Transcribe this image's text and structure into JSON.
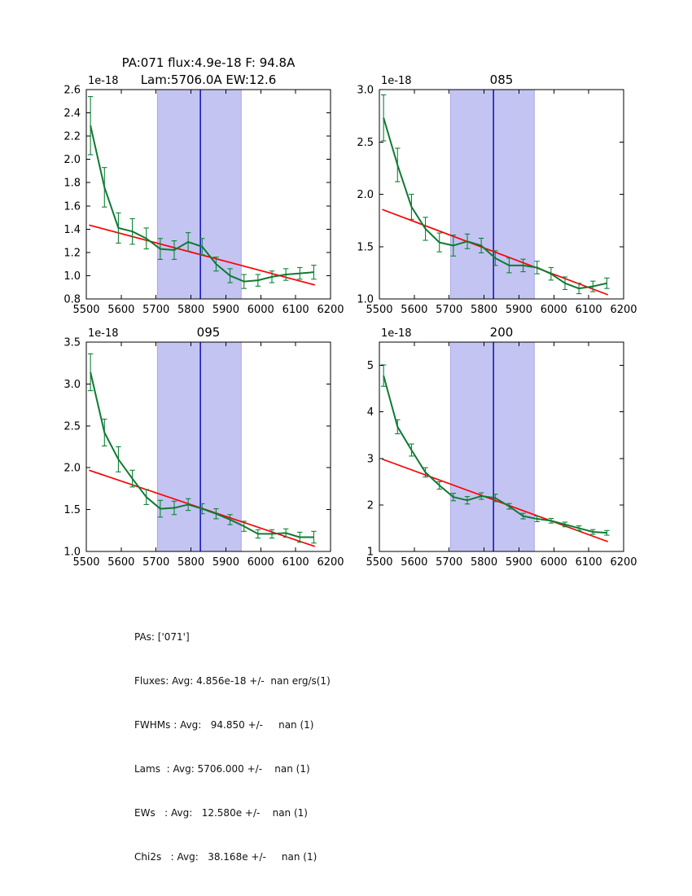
{
  "figure": {
    "background": "#ffffff",
    "colors": {
      "series": "#0f7a33",
      "error_bar": "#0c8434",
      "fit_line": "#ff0000",
      "center_line": "#0000bb",
      "band_fill": "#c4c4f3",
      "band_edge": "#a8a8e8",
      "axis": "#000000",
      "text": "#000000"
    }
  },
  "chart_data": [
    {
      "type": "line",
      "title_lines": [
        "PA:071 flux:4.9e-18 F: 94.8A",
        "Lam:5706.0A EW:12.6"
      ],
      "offset_text": "1e-18",
      "xlim": [
        5500,
        6200
      ],
      "ylim": [
        0.8,
        2.6
      ],
      "xticks": [
        5500,
        5600,
        5700,
        5800,
        5900,
        6000,
        6100,
        6200
      ],
      "xtick_labels": [
        "5500",
        "5600",
        "5700",
        "5800",
        "5900",
        "6000",
        "6100",
        "6200"
      ],
      "yticks": [
        0.8,
        1.0,
        1.2,
        1.4,
        1.6,
        1.8,
        2.0,
        2.2,
        2.4,
        2.6
      ],
      "ytick_labels": [
        "0.8",
        "1.0",
        "1.2",
        "1.4",
        "1.6",
        "1.8",
        "2.0",
        "2.2",
        "2.4",
        "2.6"
      ],
      "band": [
        5704,
        5944
      ],
      "vline": 5827,
      "fit": {
        "x": [
          5508,
          6155
        ],
        "y": [
          1.435,
          0.92
        ]
      },
      "x": [
        5512,
        5552,
        5592,
        5632,
        5672,
        5712,
        5752,
        5792,
        5832,
        5872,
        5912,
        5952,
        5992,
        6032,
        6072,
        6112,
        6152
      ],
      "y": [
        2.29,
        1.76,
        1.41,
        1.38,
        1.32,
        1.23,
        1.22,
        1.29,
        1.25,
        1.1,
        1.0,
        0.95,
        0.96,
        0.99,
        1.01,
        1.02,
        1.03
      ],
      "yerr": [
        0.25,
        0.17,
        0.13,
        0.11,
        0.09,
        0.09,
        0.08,
        0.08,
        0.07,
        0.06,
        0.06,
        0.06,
        0.05,
        0.05,
        0.05,
        0.05,
        0.06
      ]
    },
    {
      "type": "line",
      "title_lines": [
        "085"
      ],
      "offset_text": "1e-18",
      "xlim": [
        5500,
        6200
      ],
      "ylim": [
        1.0,
        3.0
      ],
      "xticks": [
        5500,
        5600,
        5700,
        5800,
        5900,
        6000,
        6100,
        6200
      ],
      "xtick_labels": [
        "5500",
        "5600",
        "5700",
        "5800",
        "5900",
        "6000",
        "6100",
        "6200"
      ],
      "yticks": [
        1.0,
        1.5,
        2.0,
        2.5,
        3.0
      ],
      "ytick_labels": [
        "1.0",
        "1.5",
        "2.0",
        "2.5",
        "3.0"
      ],
      "band": [
        5704,
        5944
      ],
      "vline": 5827,
      "fit": {
        "x": [
          5508,
          6155
        ],
        "y": [
          1.855,
          1.04
        ]
      },
      "x": [
        5512,
        5552,
        5592,
        5632,
        5672,
        5712,
        5752,
        5792,
        5832,
        5872,
        5912,
        5952,
        5992,
        6032,
        6072,
        6112,
        6152
      ],
      "y": [
        2.73,
        2.28,
        1.88,
        1.67,
        1.54,
        1.51,
        1.55,
        1.51,
        1.39,
        1.32,
        1.32,
        1.3,
        1.24,
        1.15,
        1.1,
        1.12,
        1.15
      ],
      "yerr": [
        0.22,
        0.16,
        0.12,
        0.11,
        0.09,
        0.1,
        0.07,
        0.07,
        0.07,
        0.07,
        0.06,
        0.06,
        0.06,
        0.06,
        0.05,
        0.05,
        0.05
      ]
    },
    {
      "type": "line",
      "title_lines": [
        "095"
      ],
      "offset_text": "1e-18",
      "xlim": [
        5500,
        6200
      ],
      "ylim": [
        1.0,
        3.5
      ],
      "xticks": [
        5500,
        5600,
        5700,
        5800,
        5900,
        6000,
        6100,
        6200
      ],
      "xtick_labels": [
        "5500",
        "5600",
        "5700",
        "5800",
        "5900",
        "6000",
        "6100",
        "6200"
      ],
      "yticks": [
        1.0,
        1.5,
        2.0,
        2.5,
        3.0,
        3.5
      ],
      "ytick_labels": [
        "1.0",
        "1.5",
        "2.0",
        "2.5",
        "3.0",
        "3.5"
      ],
      "band": [
        5704,
        5944
      ],
      "vline": 5827,
      "fit": {
        "x": [
          5508,
          6155
        ],
        "y": [
          1.97,
          1.06
        ]
      },
      "x": [
        5512,
        5552,
        5592,
        5632,
        5672,
        5712,
        5752,
        5792,
        5832,
        5872,
        5912,
        5952,
        5992,
        6032,
        6072,
        6112,
        6152
      ],
      "y": [
        3.14,
        2.42,
        2.1,
        1.87,
        1.65,
        1.51,
        1.52,
        1.56,
        1.51,
        1.45,
        1.38,
        1.3,
        1.21,
        1.21,
        1.22,
        1.17,
        1.17
      ],
      "yerr": [
        0.22,
        0.16,
        0.15,
        0.1,
        0.09,
        0.1,
        0.08,
        0.07,
        0.06,
        0.06,
        0.06,
        0.06,
        0.05,
        0.05,
        0.05,
        0.06,
        0.07
      ]
    },
    {
      "type": "line",
      "title_lines": [
        "200"
      ],
      "offset_text": "1e-18",
      "xlim": [
        5500,
        6200
      ],
      "ylim": [
        1.0,
        5.5
      ],
      "xticks": [
        5500,
        5600,
        5700,
        5800,
        5900,
        6000,
        6100,
        6200
      ],
      "xtick_labels": [
        "5500",
        "5600",
        "5700",
        "5800",
        "5900",
        "6000",
        "6100",
        "6200"
      ],
      "yticks": [
        1,
        2,
        3,
        4,
        5
      ],
      "ytick_labels": [
        "1",
        "2",
        "3",
        "4",
        "5"
      ],
      "band": [
        5704,
        5944
      ],
      "vline": 5827,
      "fit": {
        "x": [
          5508,
          6155
        ],
        "y": [
          2.985,
          1.21
        ]
      },
      "x": [
        5512,
        5552,
        5592,
        5632,
        5672,
        5712,
        5752,
        5792,
        5832,
        5872,
        5912,
        5952,
        5992,
        6032,
        6072,
        6112,
        6152
      ],
      "y": [
        4.78,
        3.68,
        3.18,
        2.7,
        2.42,
        2.17,
        2.1,
        2.19,
        2.15,
        1.97,
        1.76,
        1.7,
        1.66,
        1.58,
        1.5,
        1.42,
        1.4
      ],
      "yerr": [
        0.23,
        0.15,
        0.13,
        0.1,
        0.08,
        0.08,
        0.08,
        0.07,
        0.08,
        0.06,
        0.06,
        0.06,
        0.05,
        0.05,
        0.05,
        0.05,
        0.05
      ]
    }
  ],
  "stats": {
    "lines": [
      "PAs: ['071']",
      "Fluxes: Avg: 4.856e-18 +/-  nan erg/s(1)",
      "FWHMs : Avg:   94.850 +/-     nan (1)",
      "Lams  : Avg: 5706.000 +/-    nan (1)",
      "EWs   : Avg:   12.580e +/-    nan (1)",
      "Chi2s   : Avg:   38.168e +/-     nan (1)"
    ]
  }
}
